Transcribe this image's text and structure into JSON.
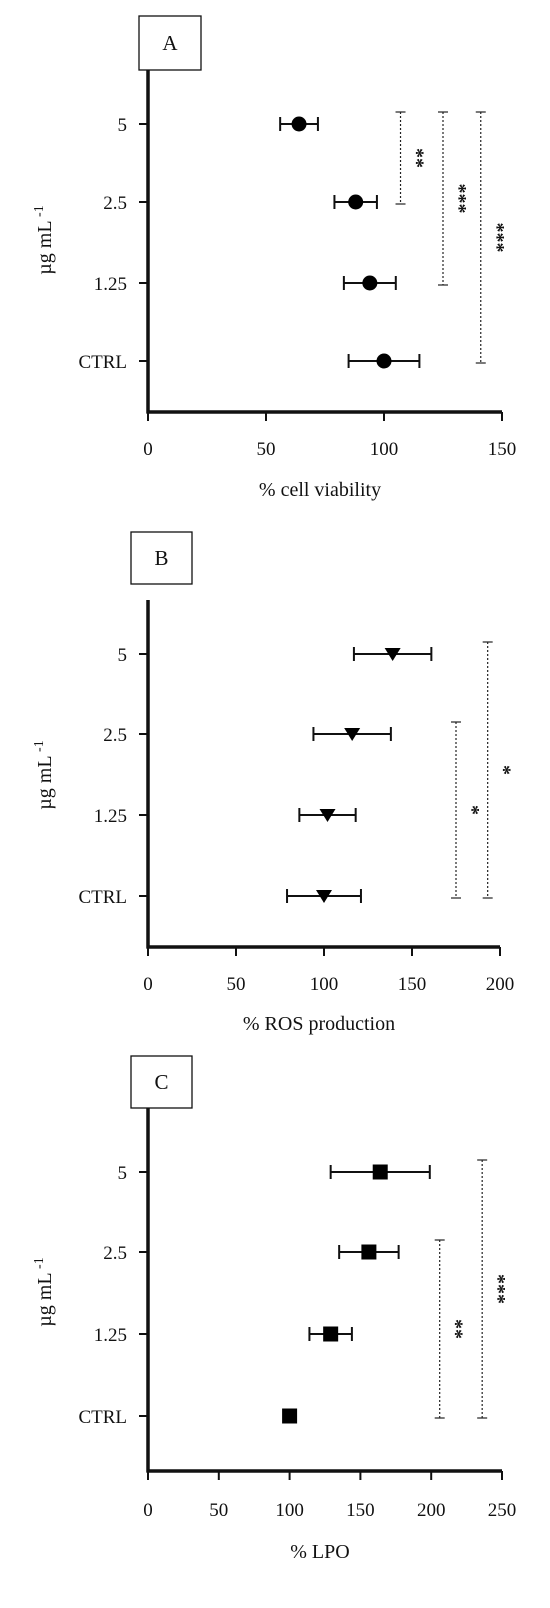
{
  "chart_data": [
    {
      "type": "scatter",
      "panel_label": "A",
      "xlabel": "% cell viability",
      "ylabel": "µg mL",
      "ylabel_sup": "-1",
      "xlim": [
        0,
        150
      ],
      "xticks": [
        "0",
        "50",
        "100",
        "150"
      ],
      "categories": [
        "5",
        "2.5",
        "1.25",
        "CTRL"
      ],
      "marker": "circle",
      "color": "#000000",
      "values": [
        64,
        88,
        94,
        100
      ],
      "errors": [
        8,
        9,
        11,
        15
      ],
      "significance": [
        {
          "from": "5",
          "to": "2.5",
          "x": 107,
          "label": "**"
        },
        {
          "from": "5",
          "to": "1.25",
          "x": 125,
          "label": "***"
        },
        {
          "from": "5",
          "to": "CTRL",
          "x": 141,
          "label": "***"
        }
      ]
    },
    {
      "type": "scatter",
      "panel_label": "B",
      "xlabel": "% ROS production",
      "ylabel": "µg mL",
      "ylabel_sup": "-1",
      "xlim": [
        0,
        200
      ],
      "xticks": [
        "0",
        "50",
        "100",
        "150",
        "200"
      ],
      "categories": [
        "5",
        "2.5",
        "1.25",
        "CTRL"
      ],
      "marker": "triangle-down",
      "color": "#000000",
      "values": [
        139,
        116,
        102,
        100
      ],
      "errors": [
        22,
        22,
        16,
        21
      ],
      "significance": [
        {
          "from": "2.5",
          "to": "CTRL",
          "x": 175,
          "label": "*"
        },
        {
          "from": "5",
          "to": "CTRL",
          "x": 193,
          "label": "*"
        }
      ]
    },
    {
      "type": "scatter",
      "panel_label": "C",
      "xlabel": "% LPO",
      "ylabel": "µg mL",
      "ylabel_sup": "-1",
      "xlim": [
        0,
        250
      ],
      "xticks": [
        "0",
        "50",
        "100",
        "150",
        "200",
        "250"
      ],
      "categories": [
        "5",
        "2.5",
        "1.25",
        "CTRL"
      ],
      "marker": "square",
      "color": "#000000",
      "values": [
        164,
        156,
        129,
        100
      ],
      "errors": [
        35,
        21,
        15,
        0
      ],
      "significance": [
        {
          "from": "2.5",
          "to": "CTRL",
          "x": 206,
          "label": "**"
        },
        {
          "from": "5",
          "to": "CTRL",
          "x": 236,
          "label": "***"
        }
      ]
    }
  ]
}
